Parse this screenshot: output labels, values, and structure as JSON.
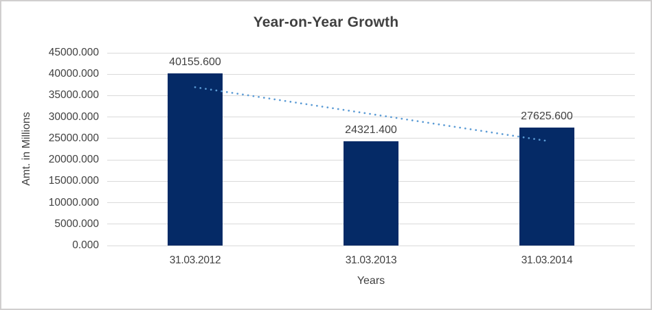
{
  "chart_data": {
    "type": "bar",
    "title": "Year-on-Year Growth",
    "xlabel": "Years",
    "ylabel": "Amt. in Millions",
    "categories": [
      "31.03.2012",
      "31.03.2013",
      "31.03.2014"
    ],
    "values": [
      40155.6,
      24321.4,
      27625.6
    ],
    "value_labels": [
      "40155.600",
      "24321.400",
      "27625.600"
    ],
    "ylim": [
      0,
      45000
    ],
    "y_tick_step": 5000,
    "y_tick_labels": [
      "0.000",
      "5000.000",
      "10000.000",
      "15000.000",
      "20000.000",
      "25000.000",
      "30000.000",
      "35000.000",
      "40000.000",
      "45000.000"
    ],
    "grid": true,
    "legend": "none",
    "bar_color": "#052a66",
    "gridline_color": "#d9d9d9",
    "text_color": "#404040",
    "border_color": "#d0cece",
    "trendline": {
      "type": "linear",
      "style": "dotted",
      "color": "#5b9bd5",
      "start_value": 36966,
      "end_value": 24436
    }
  }
}
